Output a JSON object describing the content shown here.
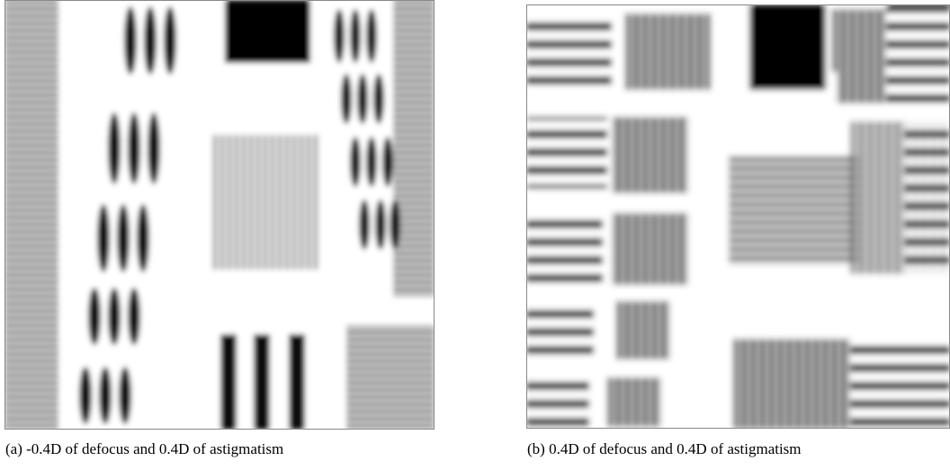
{
  "figure": {
    "panels": [
      {
        "caption": "(a) -0.4D of defocus and 0.4D of astigmatism"
      },
      {
        "caption": "(b) 0.4D of defocus and 0.4D of astigmatism"
      }
    ]
  }
}
